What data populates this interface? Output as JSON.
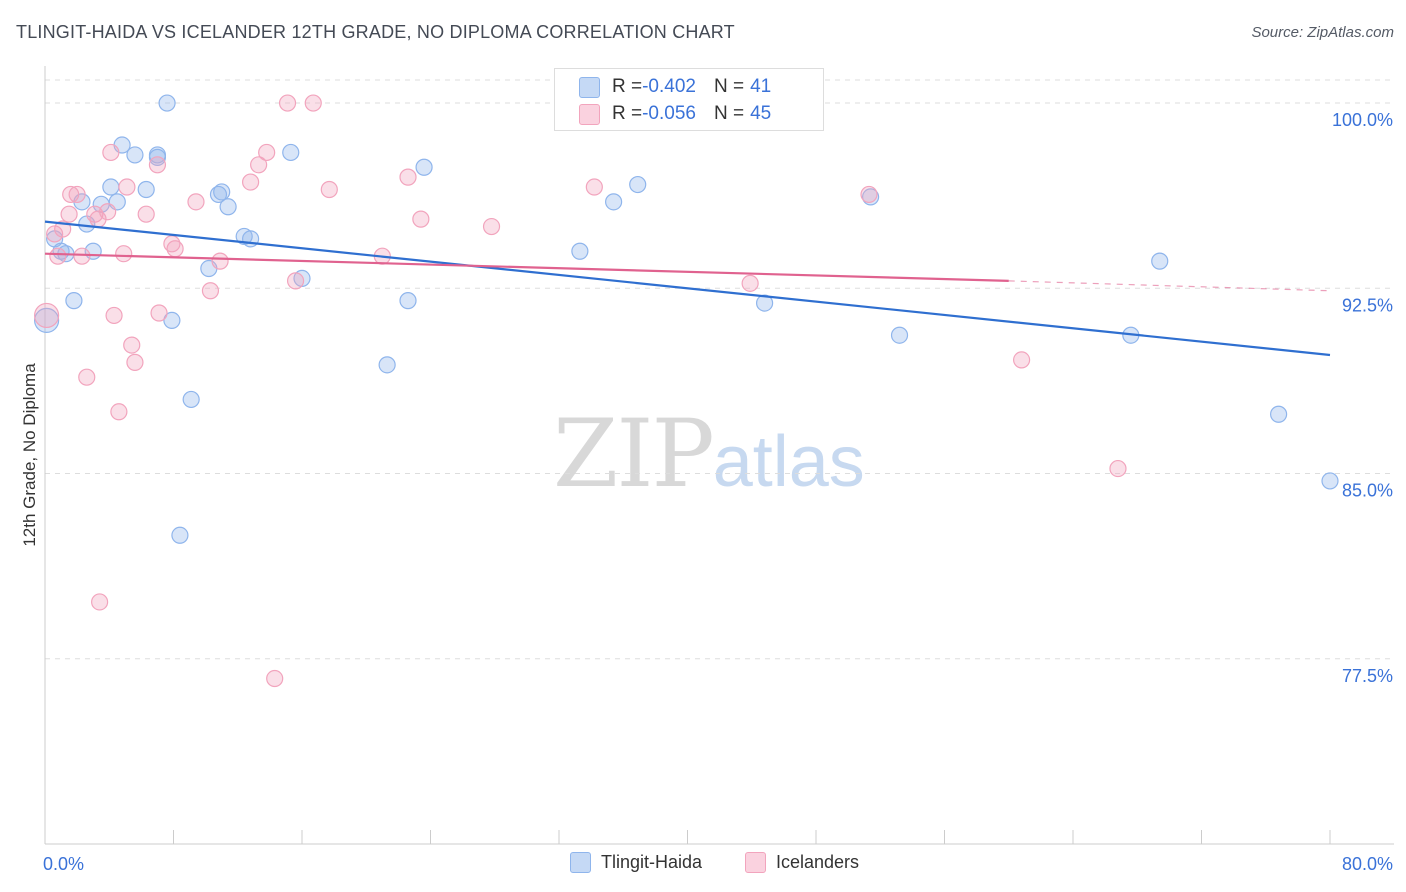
{
  "title": "TLINGIT-HAIDA VS ICELANDER 12TH GRADE, NO DIPLOMA CORRELATION CHART",
  "source": "Source: ZipAtlas.com",
  "watermark": {
    "zip": "ZIP",
    "atlas": "atlas"
  },
  "legend": {
    "rows": [
      {
        "r_label": "R = ",
        "r_value": "-0.402",
        "n_label": "N = ",
        "n_value": "41",
        "color": "#8fb5ec"
      },
      {
        "r_label": "R = ",
        "r_value": "-0.056",
        "n_label": "N = ",
        "n_value": "45",
        "color": "#f2a4bd"
      }
    ]
  },
  "bottom_legend": [
    "Tlingit-Haida",
    "Icelanders"
  ],
  "chart_data": {
    "type": "scatter",
    "title": "TLINGIT-HAIDA VS ICELANDER 12TH GRADE, NO DIPLOMA CORRELATION CHART",
    "xlabel": "",
    "ylabel": "12th Grade, No Diploma",
    "xlim": [
      0,
      80
    ],
    "ylim": [
      70.0,
      101.5
    ],
    "x_tick_labels": [
      "0.0%",
      "80.0%"
    ],
    "y_ticks": [
      77.5,
      85.0,
      92.5,
      100.0
    ],
    "y_tick_labels": [
      "77.5%",
      "85.0%",
      "92.5%",
      "100.0%"
    ],
    "grid": true,
    "legend_position": "top-center",
    "series": [
      {
        "name": "Tlingit-Haida",
        "color": "#8fb5ec",
        "line_color": "#2f6fd0",
        "R": -0.402,
        "N": 41,
        "trend": {
          "x0": 0.0,
          "y0": 95.2,
          "x1": 80.0,
          "y1": 89.8
        },
        "points": [
          [
            0.1,
            91.2
          ],
          [
            0.6,
            94.5
          ],
          [
            1.0,
            94.0
          ],
          [
            1.3,
            93.9
          ],
          [
            1.8,
            92.0
          ],
          [
            2.3,
            96.0
          ],
          [
            2.6,
            95.1
          ],
          [
            3.0,
            94.0
          ],
          [
            3.5,
            95.9
          ],
          [
            4.1,
            96.6
          ],
          [
            4.5,
            96.0
          ],
          [
            4.8,
            98.3
          ],
          [
            5.6,
            97.9
          ],
          [
            6.3,
            96.5
          ],
          [
            7.0,
            97.9
          ],
          [
            7.0,
            97.8
          ],
          [
            7.6,
            100.0
          ],
          [
            7.9,
            91.2
          ],
          [
            8.4,
            82.5
          ],
          [
            9.1,
            88.0
          ],
          [
            10.2,
            93.3
          ],
          [
            10.8,
            96.3
          ],
          [
            11.0,
            96.4
          ],
          [
            11.4,
            95.8
          ],
          [
            12.4,
            94.6
          ],
          [
            12.8,
            94.5
          ],
          [
            15.3,
            98.0
          ],
          [
            16.0,
            92.9
          ],
          [
            21.3,
            89.4
          ],
          [
            22.6,
            92.0
          ],
          [
            23.6,
            97.4
          ],
          [
            33.3,
            94.0
          ],
          [
            35.4,
            96.0
          ],
          [
            36.9,
            96.7
          ],
          [
            44.8,
            91.9
          ],
          [
            51.4,
            96.2
          ],
          [
            53.2,
            90.6
          ],
          [
            67.6,
            90.6
          ],
          [
            69.4,
            93.6
          ],
          [
            76.8,
            87.4
          ],
          [
            80.0,
            84.7
          ]
        ]
      },
      {
        "name": "Icelanders",
        "color": "#f2a4bd",
        "line_color": "#e0628f",
        "R": -0.056,
        "N": 45,
        "trend": {
          "x0": 0.0,
          "y0": 93.9,
          "x1": 60.0,
          "y1": 92.8,
          "dash_to_x": 80.0,
          "dash_y": 92.4
        },
        "points": [
          [
            0.1,
            91.4
          ],
          [
            0.6,
            94.7
          ],
          [
            0.8,
            93.8
          ],
          [
            1.1,
            94.9
          ],
          [
            1.5,
            95.5
          ],
          [
            1.6,
            96.3
          ],
          [
            2.0,
            96.3
          ],
          [
            2.3,
            93.8
          ],
          [
            2.6,
            88.9
          ],
          [
            3.1,
            95.5
          ],
          [
            3.3,
            95.3
          ],
          [
            3.4,
            79.8
          ],
          [
            3.9,
            95.6
          ],
          [
            4.1,
            98.0
          ],
          [
            4.3,
            91.4
          ],
          [
            4.6,
            87.5
          ],
          [
            4.9,
            93.9
          ],
          [
            5.1,
            96.6
          ],
          [
            5.4,
            90.2
          ],
          [
            5.6,
            89.5
          ],
          [
            6.3,
            95.5
          ],
          [
            7.0,
            97.5
          ],
          [
            7.1,
            91.5
          ],
          [
            7.9,
            94.3
          ],
          [
            8.1,
            94.1
          ],
          [
            9.4,
            96.0
          ],
          [
            10.3,
            92.4
          ],
          [
            10.9,
            93.6
          ],
          [
            12.8,
            96.8
          ],
          [
            13.3,
            97.5
          ],
          [
            13.8,
            98.0
          ],
          [
            14.3,
            76.7
          ],
          [
            15.1,
            100.0
          ],
          [
            15.6,
            92.8
          ],
          [
            16.7,
            100.0
          ],
          [
            17.7,
            96.5
          ],
          [
            21.0,
            93.8
          ],
          [
            22.6,
            97.0
          ],
          [
            23.4,
            95.3
          ],
          [
            27.8,
            95.0
          ],
          [
            34.2,
            96.6
          ],
          [
            43.9,
            92.7
          ],
          [
            51.3,
            96.3
          ],
          [
            60.8,
            89.6
          ],
          [
            66.8,
            85.2
          ]
        ]
      }
    ]
  }
}
